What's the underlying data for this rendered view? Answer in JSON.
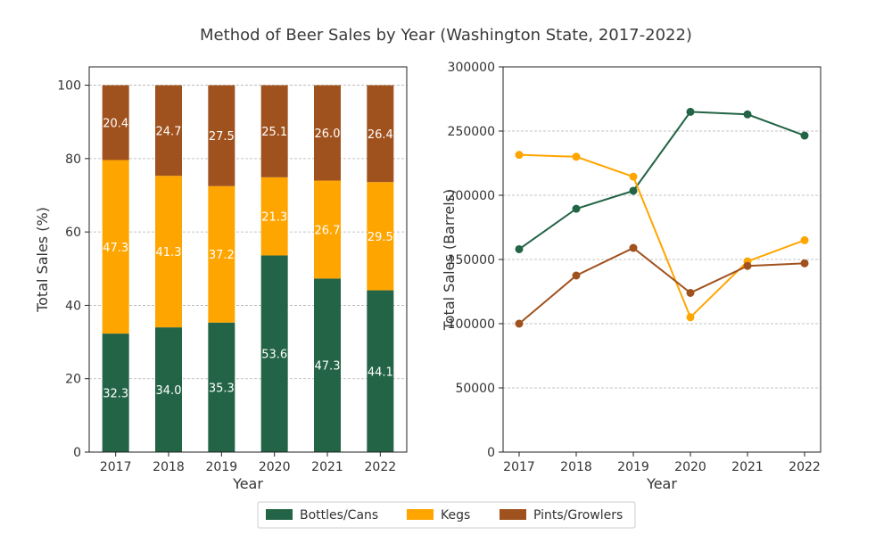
{
  "title": "Method of Beer Sales by Year (Washington State, 2017-2022)",
  "colors": {
    "Bottles/Cans": "#236446",
    "Kegs": "#FFA500",
    "Pints/Growlers": "#A0521E"
  },
  "legend": {
    "placement": "bottom-center",
    "entries": [
      "Bottles/Cans",
      "Kegs",
      "Pints/Growlers"
    ]
  },
  "chart_data": [
    {
      "type": "bar",
      "stacked": true,
      "categories": [
        "2017",
        "2018",
        "2019",
        "2020",
        "2021",
        "2022"
      ],
      "series": [
        {
          "name": "Bottles/Cans",
          "values": [
            32.3,
            34.0,
            35.3,
            53.6,
            47.3,
            44.1
          ]
        },
        {
          "name": "Kegs",
          "values": [
            47.3,
            41.3,
            37.2,
            21.3,
            26.7,
            29.5
          ]
        },
        {
          "name": "Pints/Growlers",
          "values": [
            20.4,
            24.7,
            27.5,
            25.1,
            26.0,
            26.4
          ]
        }
      ],
      "xlabel": "Year",
      "ylabel": "Total Sales (%)",
      "ylim": [
        0,
        105
      ],
      "yticks": [
        0,
        20,
        40,
        60,
        80,
        100
      ],
      "ytick_labels": [
        "0",
        "20",
        "40",
        "60",
        "80",
        "100"
      ],
      "grid": true,
      "data_labels": true
    },
    {
      "type": "line",
      "x": [
        "2017",
        "2018",
        "2019",
        "2020",
        "2021",
        "2022"
      ],
      "series": [
        {
          "name": "Bottles/Cans",
          "values": [
            158000,
            189500,
            203500,
            265000,
            263000,
            246500
          ]
        },
        {
          "name": "Kegs",
          "values": [
            231500,
            230000,
            214500,
            105000,
            148500,
            165000
          ]
        },
        {
          "name": "Pints/Growlers",
          "values": [
            100000,
            137500,
            159000,
            124000,
            145000,
            147000
          ]
        }
      ],
      "xlabel": "Year",
      "ylabel": "Total Sales (Barrels)",
      "ylim": [
        0,
        300000
      ],
      "yticks": [
        0,
        50000,
        100000,
        150000,
        200000,
        250000,
        300000
      ],
      "ytick_labels": [
        "0K",
        "50K",
        "100K",
        "150K",
        "200K",
        "250K",
        "300K"
      ],
      "grid": true,
      "markers": true
    }
  ]
}
